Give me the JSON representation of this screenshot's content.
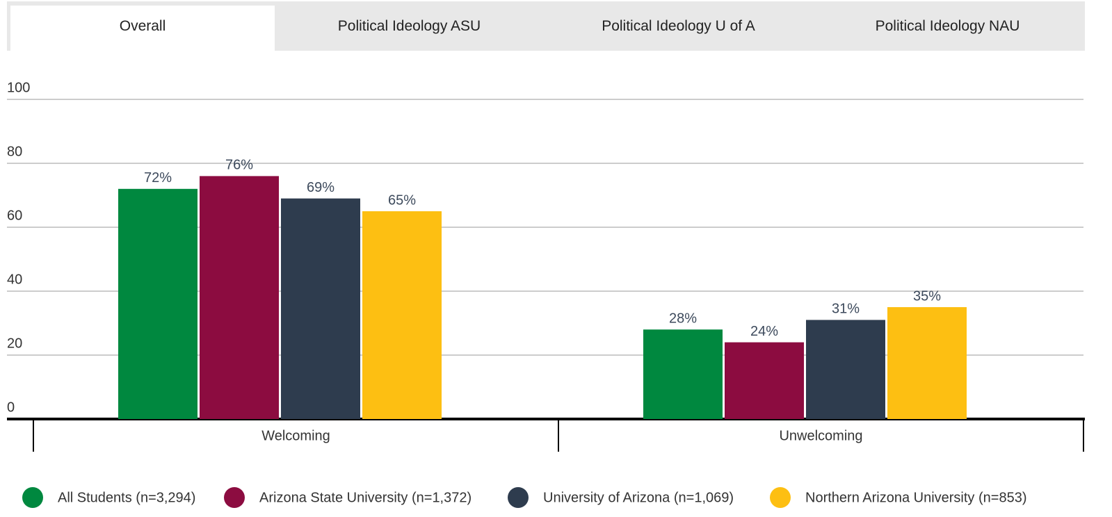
{
  "tabs": [
    "Overall",
    "Political Ideology ASU",
    "Political Ideology U of A",
    "Political Ideology NAU"
  ],
  "chart_data": {
    "type": "bar",
    "categories": [
      "Welcoming",
      "Unwelcoming"
    ],
    "series": [
      {
        "name": "All Students (n=3,294)",
        "color": "#00883f",
        "values": [
          72,
          28
        ],
        "value_labels": [
          "72%",
          "28%"
        ]
      },
      {
        "name": "Arizona State University (n=1,372)",
        "color": "#8c0c40",
        "values": [
          76,
          24
        ],
        "value_labels": [
          "76%",
          "24%"
        ]
      },
      {
        "name": "University of Arizona (n=1,069)",
        "color": "#2e3c4e",
        "values": [
          69,
          31
        ],
        "value_labels": [
          "69%",
          "31%"
        ]
      },
      {
        "name": "Northern Arizona University (n=853)",
        "color": "#fdbf12",
        "values": [
          65,
          35
        ],
        "value_labels": [
          "65%",
          "35%"
        ]
      }
    ],
    "ylim": [
      0,
      100
    ],
    "yticks": [
      0,
      20,
      40,
      60,
      80,
      100
    ],
    "grid": true,
    "legend": "bottom"
  }
}
